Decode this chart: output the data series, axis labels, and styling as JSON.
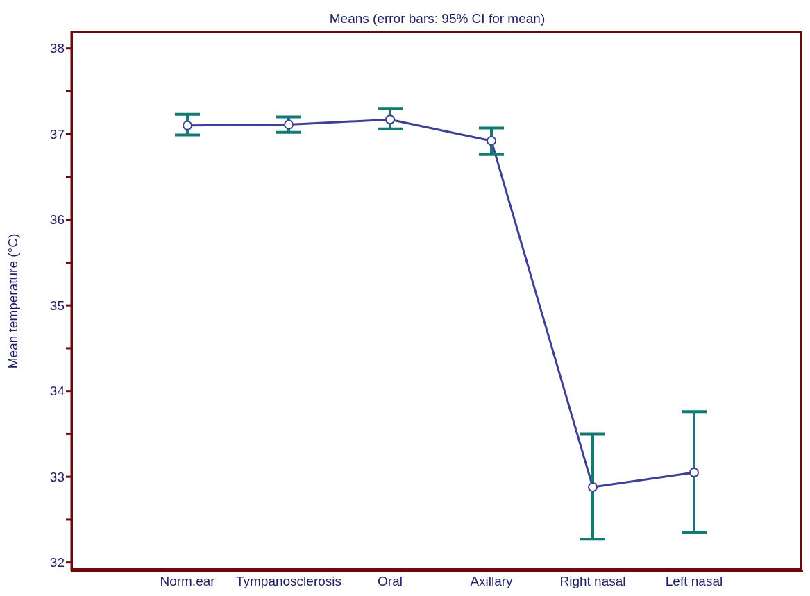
{
  "chart_data": {
    "type": "line",
    "title": "Means  (error bars: 95% CI for mean)",
    "ylabel": "Mean temperature (°C)",
    "categories": [
      "Norm.ear",
      "Tympanosclerosis",
      "Oral",
      "Axillary",
      "Right nasal",
      "Left nasal"
    ],
    "color": "#3f3f99",
    "values": [
      37.1,
      37.11,
      37.17,
      36.92,
      32.88,
      33.05
    ],
    "errors": [
      [
        36.99,
        37.23
      ],
      [
        37.02,
        37.2
      ],
      [
        37.06,
        37.3
      ],
      [
        36.76,
        37.07
      ],
      [
        32.27,
        33.5
      ],
      [
        32.35,
        33.76
      ]
    ],
    "ylim": [
      31.9,
      38.2
    ],
    "yticks": [
      32,
      {
        "value": 32.5,
        "label": null
      },
      33,
      {
        "value": 33.5,
        "label": null
      },
      34,
      {
        "value": 34.5,
        "label": null
      },
      35,
      {
        "value": 35.5,
        "label": null
      },
      36,
      {
        "value": 36.5,
        "label": null
      },
      37,
      {
        "value": 37.5,
        "label": null
      },
      38
    ],
    "grid": false,
    "legend": false,
    "marker": "circle",
    "line_style": "solid"
  }
}
